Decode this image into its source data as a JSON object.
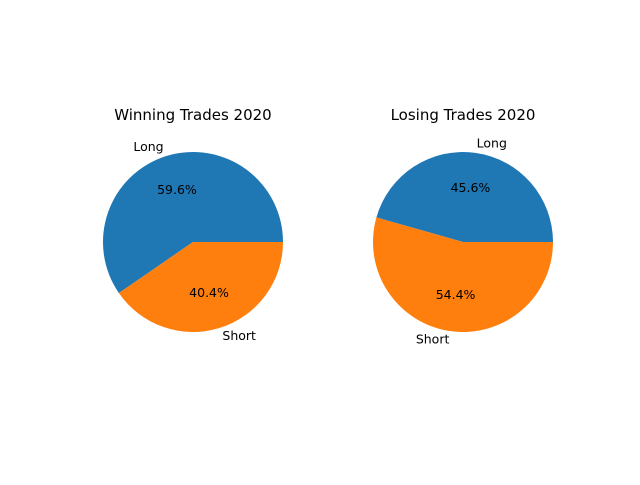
{
  "chart_data": [
    {
      "type": "pie",
      "title": "Winning Trades 2020",
      "labels": [
        "Long",
        "Short"
      ],
      "values": [
        59.6,
        40.4
      ],
      "value_labels": [
        "59.6%",
        "40.4%"
      ],
      "colors": [
        "#1f77b4",
        "#ff7f0e"
      ],
      "legend": "none",
      "start_angle": "0 degrees (3 o'clock), counter-clockwise"
    },
    {
      "type": "pie",
      "title": "Losing Trades 2020",
      "labels": [
        "Long",
        "Short"
      ],
      "values": [
        45.6,
        54.4
      ],
      "value_labels": [
        "45.6%",
        "54.4%"
      ],
      "colors": [
        "#1f77b4",
        "#ff7f0e"
      ],
      "legend": "none",
      "start_angle": "0 degrees (3 o'clock), counter-clockwise"
    }
  ]
}
